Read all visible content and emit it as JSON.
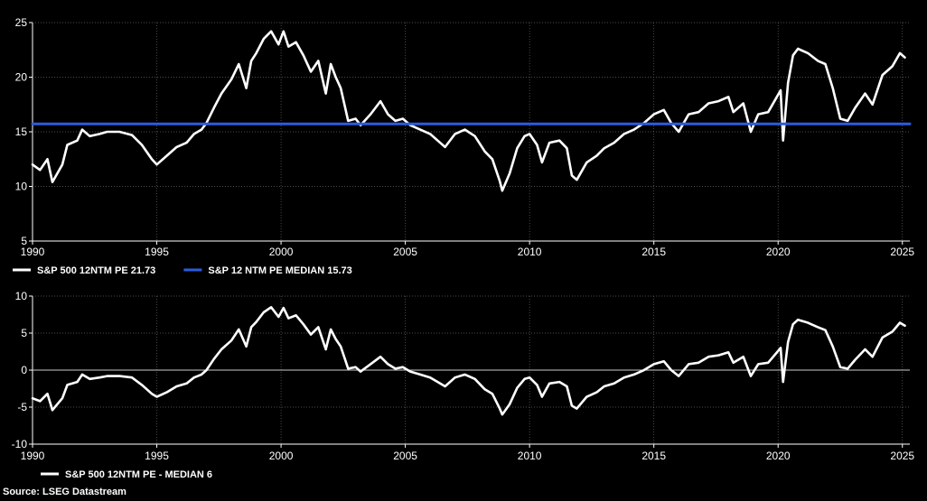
{
  "chart_data": [
    {
      "type": "line",
      "title": "",
      "xlabel": "",
      "ylabel": "",
      "xlim": [
        1990,
        2025.3
      ],
      "ylim": [
        5,
        25
      ],
      "x_ticks": [
        "1990",
        "1995",
        "2000",
        "2005",
        "2010",
        "2015",
        "2020",
        "2025"
      ],
      "y_ticks": [
        "5",
        "10",
        "15",
        "20",
        "25"
      ],
      "grid": true,
      "legend_placement": "bottom-left",
      "series": [
        {
          "name": "S&P 500 12NTM PE 21.73",
          "color": "#ffffff",
          "points": [
            [
              1990.0,
              12.0
            ],
            [
              1990.3,
              11.5
            ],
            [
              1990.6,
              12.5
            ],
            [
              1990.8,
              10.4
            ],
            [
              1991.0,
              11.2
            ],
            [
              1991.2,
              12.0
            ],
            [
              1991.4,
              13.8
            ],
            [
              1991.8,
              14.2
            ],
            [
              1992.0,
              15.2
            ],
            [
              1992.3,
              14.6
            ],
            [
              1992.7,
              14.8
            ],
            [
              1993.0,
              15.0
            ],
            [
              1993.5,
              15.0
            ],
            [
              1994.0,
              14.7
            ],
            [
              1994.4,
              13.8
            ],
            [
              1994.8,
              12.5
            ],
            [
              1995.0,
              12.0
            ],
            [
              1995.4,
              12.8
            ],
            [
              1995.8,
              13.6
            ],
            [
              1996.2,
              14.0
            ],
            [
              1996.5,
              14.8
            ],
            [
              1996.8,
              15.2
            ],
            [
              1997.0,
              15.8
            ],
            [
              1997.3,
              17.2
            ],
            [
              1997.6,
              18.5
            ],
            [
              1998.0,
              19.8
            ],
            [
              1998.3,
              21.2
            ],
            [
              1998.6,
              19.0
            ],
            [
              1998.8,
              21.5
            ],
            [
              1999.0,
              22.2
            ],
            [
              1999.3,
              23.5
            ],
            [
              1999.6,
              24.2
            ],
            [
              1999.9,
              23.0
            ],
            [
              2000.1,
              24.2
            ],
            [
              2000.3,
              22.8
            ],
            [
              2000.6,
              23.2
            ],
            [
              2000.9,
              22.0
            ],
            [
              2001.2,
              20.5
            ],
            [
              2001.5,
              21.5
            ],
            [
              2001.8,
              18.5
            ],
            [
              2002.0,
              21.2
            ],
            [
              2002.2,
              20.0
            ],
            [
              2002.4,
              19.0
            ],
            [
              2002.6,
              17.0
            ],
            [
              2002.7,
              16.0
            ],
            [
              2003.0,
              16.2
            ],
            [
              2003.2,
              15.6
            ],
            [
              2003.6,
              16.6
            ],
            [
              2004.0,
              17.8
            ],
            [
              2004.3,
              16.6
            ],
            [
              2004.6,
              16.0
            ],
            [
              2004.9,
              16.2
            ],
            [
              2005.2,
              15.6
            ],
            [
              2005.6,
              15.2
            ],
            [
              2006.0,
              14.8
            ],
            [
              2006.3,
              14.2
            ],
            [
              2006.6,
              13.6
            ],
            [
              2007.0,
              14.8
            ],
            [
              2007.4,
              15.2
            ],
            [
              2007.8,
              14.6
            ],
            [
              2008.2,
              13.2
            ],
            [
              2008.5,
              12.5
            ],
            [
              2008.8,
              10.5
            ],
            [
              2008.9,
              9.6
            ],
            [
              2009.2,
              11.2
            ],
            [
              2009.5,
              13.5
            ],
            [
              2009.8,
              14.6
            ],
            [
              2010.0,
              14.8
            ],
            [
              2010.3,
              13.8
            ],
            [
              2010.5,
              12.2
            ],
            [
              2010.8,
              14.0
            ],
            [
              2011.2,
              14.2
            ],
            [
              2011.5,
              13.5
            ],
            [
              2011.7,
              11.0
            ],
            [
              2011.9,
              10.6
            ],
            [
              2012.3,
              12.2
            ],
            [
              2012.7,
              12.8
            ],
            [
              2013.0,
              13.5
            ],
            [
              2013.4,
              14.0
            ],
            [
              2013.8,
              14.8
            ],
            [
              2014.2,
              15.2
            ],
            [
              2014.6,
              15.8
            ],
            [
              2015.0,
              16.6
            ],
            [
              2015.4,
              17.0
            ],
            [
              2015.7,
              15.8
            ],
            [
              2016.0,
              15.0
            ],
            [
              2016.4,
              16.6
            ],
            [
              2016.8,
              16.8
            ],
            [
              2017.2,
              17.6
            ],
            [
              2017.6,
              17.8
            ],
            [
              2018.0,
              18.2
            ],
            [
              2018.2,
              16.8
            ],
            [
              2018.6,
              17.6
            ],
            [
              2018.9,
              15.0
            ],
            [
              2019.2,
              16.6
            ],
            [
              2019.6,
              16.8
            ],
            [
              2019.9,
              18.0
            ],
            [
              2020.1,
              18.8
            ],
            [
              2020.2,
              14.2
            ],
            [
              2020.4,
              19.5
            ],
            [
              2020.6,
              22.0
            ],
            [
              2020.8,
              22.6
            ],
            [
              2021.2,
              22.2
            ],
            [
              2021.6,
              21.5
            ],
            [
              2021.9,
              21.2
            ],
            [
              2022.2,
              19.0
            ],
            [
              2022.5,
              16.2
            ],
            [
              2022.8,
              16.0
            ],
            [
              2023.1,
              17.2
            ],
            [
              2023.5,
              18.5
            ],
            [
              2023.8,
              17.5
            ],
            [
              2024.2,
              20.2
            ],
            [
              2024.6,
              21.0
            ],
            [
              2024.9,
              22.2
            ],
            [
              2025.1,
              21.8
            ]
          ]
        },
        {
          "name": "S&P 12 NTM PE MEDIAN 15.73",
          "color": "#2c5be0",
          "points": [
            [
              1990.0,
              15.73
            ],
            [
              2025.3,
              15.73
            ]
          ]
        }
      ]
    },
    {
      "type": "line",
      "title": "",
      "xlabel": "",
      "ylabel": "",
      "xlim": [
        1990,
        2025.3
      ],
      "ylim": [
        -10,
        10
      ],
      "x_ticks": [
        "1990",
        "1995",
        "2000",
        "2005",
        "2010",
        "2015",
        "2020",
        "2025"
      ],
      "y_ticks": [
        "10",
        "5",
        "0",
        "-5",
        "-10"
      ],
      "grid": true,
      "zero_line": true,
      "legend_placement": "bottom-left",
      "series": [
        {
          "name": "S&P 500 12NTM PE - MEDIAN 6",
          "color": "#ffffff",
          "points": [
            [
              1990.0,
              -3.8
            ],
            [
              1990.3,
              -4.2
            ],
            [
              1990.6,
              -3.2
            ],
            [
              1990.8,
              -5.4
            ],
            [
              1991.0,
              -4.6
            ],
            [
              1991.2,
              -3.8
            ],
            [
              1991.4,
              -2.0
            ],
            [
              1991.8,
              -1.6
            ],
            [
              1992.0,
              -0.6
            ],
            [
              1992.3,
              -1.2
            ],
            [
              1992.7,
              -1.0
            ],
            [
              1993.0,
              -0.8
            ],
            [
              1993.5,
              -0.8
            ],
            [
              1994.0,
              -1.0
            ],
            [
              1994.4,
              -2.0
            ],
            [
              1994.8,
              -3.2
            ],
            [
              1995.0,
              -3.6
            ],
            [
              1995.4,
              -3.0
            ],
            [
              1995.8,
              -2.2
            ],
            [
              1996.2,
              -1.8
            ],
            [
              1996.5,
              -1.0
            ],
            [
              1996.8,
              -0.6
            ],
            [
              1997.0,
              0.0
            ],
            [
              1997.3,
              1.5
            ],
            [
              1997.6,
              2.8
            ],
            [
              1998.0,
              4.0
            ],
            [
              1998.3,
              5.5
            ],
            [
              1998.6,
              3.2
            ],
            [
              1998.8,
              5.8
            ],
            [
              1999.0,
              6.5
            ],
            [
              1999.3,
              7.8
            ],
            [
              1999.6,
              8.5
            ],
            [
              1999.9,
              7.2
            ],
            [
              2000.1,
              8.4
            ],
            [
              2000.3,
              7.0
            ],
            [
              2000.6,
              7.4
            ],
            [
              2000.9,
              6.2
            ],
            [
              2001.2,
              4.8
            ],
            [
              2001.5,
              5.8
            ],
            [
              2001.8,
              2.8
            ],
            [
              2002.0,
              5.5
            ],
            [
              2002.2,
              4.2
            ],
            [
              2002.4,
              3.2
            ],
            [
              2002.6,
              1.2
            ],
            [
              2002.7,
              0.2
            ],
            [
              2003.0,
              0.4
            ],
            [
              2003.2,
              -0.2
            ],
            [
              2003.6,
              0.8
            ],
            [
              2004.0,
              1.8
            ],
            [
              2004.3,
              0.8
            ],
            [
              2004.6,
              0.2
            ],
            [
              2004.9,
              0.4
            ],
            [
              2005.2,
              -0.2
            ],
            [
              2005.6,
              -0.6
            ],
            [
              2006.0,
              -1.0
            ],
            [
              2006.3,
              -1.6
            ],
            [
              2006.6,
              -2.2
            ],
            [
              2007.0,
              -1.0
            ],
            [
              2007.4,
              -0.6
            ],
            [
              2007.8,
              -1.2
            ],
            [
              2008.2,
              -2.6
            ],
            [
              2008.5,
              -3.2
            ],
            [
              2008.8,
              -5.2
            ],
            [
              2008.9,
              -6.0
            ],
            [
              2009.2,
              -4.6
            ],
            [
              2009.5,
              -2.4
            ],
            [
              2009.8,
              -1.2
            ],
            [
              2010.0,
              -1.0
            ],
            [
              2010.3,
              -2.0
            ],
            [
              2010.5,
              -3.6
            ],
            [
              2010.8,
              -1.8
            ],
            [
              2011.2,
              -1.6
            ],
            [
              2011.5,
              -2.2
            ],
            [
              2011.7,
              -4.8
            ],
            [
              2011.9,
              -5.2
            ],
            [
              2012.3,
              -3.6
            ],
            [
              2012.7,
              -3.0
            ],
            [
              2013.0,
              -2.2
            ],
            [
              2013.4,
              -1.8
            ],
            [
              2013.8,
              -1.0
            ],
            [
              2014.2,
              -0.6
            ],
            [
              2014.6,
              0.0
            ],
            [
              2015.0,
              0.8
            ],
            [
              2015.4,
              1.2
            ],
            [
              2015.7,
              0.0
            ],
            [
              2016.0,
              -0.8
            ],
            [
              2016.4,
              0.8
            ],
            [
              2016.8,
              1.0
            ],
            [
              2017.2,
              1.8
            ],
            [
              2017.6,
              2.0
            ],
            [
              2018.0,
              2.4
            ],
            [
              2018.2,
              1.0
            ],
            [
              2018.6,
              1.8
            ],
            [
              2018.9,
              -0.8
            ],
            [
              2019.2,
              0.8
            ],
            [
              2019.6,
              1.0
            ],
            [
              2019.9,
              2.2
            ],
            [
              2020.1,
              3.0
            ],
            [
              2020.2,
              -1.6
            ],
            [
              2020.4,
              3.8
            ],
            [
              2020.6,
              6.2
            ],
            [
              2020.8,
              6.8
            ],
            [
              2021.2,
              6.4
            ],
            [
              2021.6,
              5.8
            ],
            [
              2021.9,
              5.4
            ],
            [
              2022.2,
              3.2
            ],
            [
              2022.5,
              0.4
            ],
            [
              2022.8,
              0.2
            ],
            [
              2023.1,
              1.4
            ],
            [
              2023.5,
              2.8
            ],
            [
              2023.8,
              1.8
            ],
            [
              2024.2,
              4.4
            ],
            [
              2024.6,
              5.2
            ],
            [
              2024.9,
              6.4
            ],
            [
              2025.1,
              6.0
            ]
          ]
        }
      ]
    }
  ],
  "legend": {
    "top": [
      {
        "label": "S&P 500 12NTM PE 21.73",
        "color": "#ffffff"
      },
      {
        "label": "S&P 12 NTM PE MEDIAN 15.73",
        "color": "#2c5be0"
      }
    ],
    "bottom": [
      {
        "label": "S&P 500 12NTM PE - MEDIAN 6",
        "color": "#ffffff"
      }
    ]
  },
  "source": "Source: LSEG Datastream"
}
